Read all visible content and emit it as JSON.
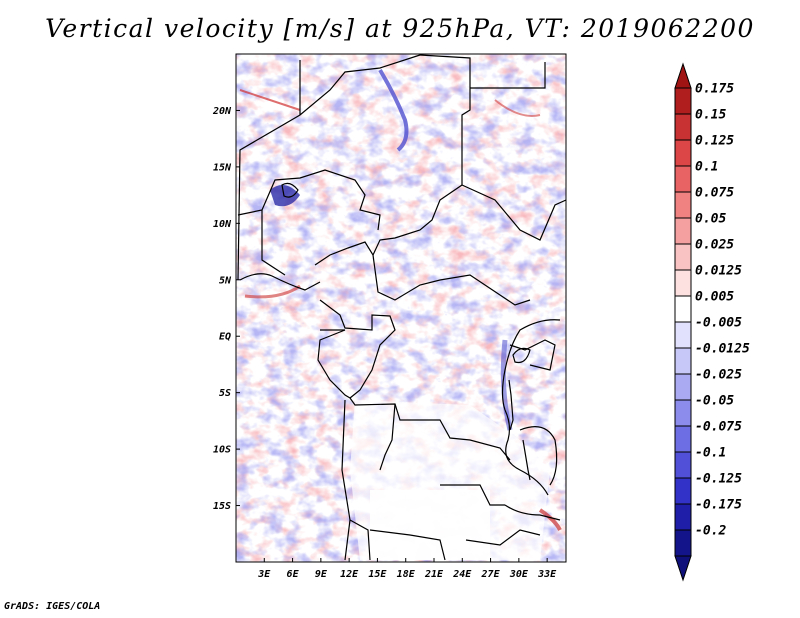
{
  "title": "Vertical velocity [m/s] at 925hPa, VT: 2019062200",
  "footer": "GrADS: IGES/COLA",
  "map": {
    "variable": "Vertical velocity",
    "units": "m/s",
    "level": "925hPa",
    "valid_time": "2019062200",
    "lon_range": [
      0,
      35
    ],
    "lat_range": [
      -20,
      25
    ],
    "x_ticks": [
      {
        "lon": 3,
        "label": "3E"
      },
      {
        "lon": 6,
        "label": "6E"
      },
      {
        "lon": 9,
        "label": "9E"
      },
      {
        "lon": 12,
        "label": "12E"
      },
      {
        "lon": 15,
        "label": "15E"
      },
      {
        "lon": 18,
        "label": "18E"
      },
      {
        "lon": 21,
        "label": "21E"
      },
      {
        "lon": 24,
        "label": "24E"
      },
      {
        "lon": 27,
        "label": "27E"
      },
      {
        "lon": 30,
        "label": "30E"
      },
      {
        "lon": 33,
        "label": "33E"
      }
    ],
    "y_ticks": [
      {
        "lat": 20,
        "label": "20N"
      },
      {
        "lat": 15,
        "label": "15N"
      },
      {
        "lat": 10,
        "label": "10N"
      },
      {
        "lat": 5,
        "label": "5N"
      },
      {
        "lat": 0,
        "label": "EQ"
      },
      {
        "lat": -5,
        "label": "5S"
      },
      {
        "lat": -10,
        "label": "10S"
      },
      {
        "lat": -15,
        "label": "15S"
      }
    ]
  },
  "colorbar": {
    "labels": [
      "0.175",
      "0.15",
      "0.125",
      "0.1",
      "0.075",
      "0.05",
      "0.025",
      "0.0125",
      "0.005",
      "-0.005",
      "-0.0125",
      "-0.025",
      "-0.05",
      "-0.075",
      "-0.1",
      "-0.125",
      "-0.175",
      "-0.2"
    ],
    "colors": [
      "#b01e1e",
      "#c83232",
      "#dc4646",
      "#e86464",
      "#f08282",
      "#f5a0a0",
      "#fac3c3",
      "#fde1e1",
      "#ffffff",
      "#e1e1fd",
      "#c8c8f8",
      "#aaaaf2",
      "#8c8cec",
      "#6e6ee4",
      "#5050d8",
      "#3232c8",
      "#1e1ea8",
      "#14148a"
    ],
    "top_color": "#a01414",
    "bottom_color": "#10107a"
  }
}
